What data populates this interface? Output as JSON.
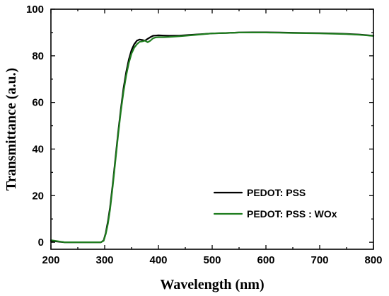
{
  "chart_data": {
    "type": "line",
    "title": "",
    "xlabel": "Wavelength (nm)",
    "ylabel": "Transmittance (a.u.)",
    "xlim": [
      200,
      800
    ],
    "ylim": [
      -3,
      100
    ],
    "x_ticks": [
      200,
      300,
      400,
      500,
      600,
      700,
      800
    ],
    "y_ticks": [
      0,
      20,
      40,
      60,
      80,
      100
    ],
    "grid": false,
    "legend_position": "bottom-right",
    "series": [
      {
        "name": "PEDOT: PSS",
        "color": "#000000",
        "x": [
          200,
          225,
          250,
          275,
          293,
          298,
          302,
          306,
          310,
          315,
          320,
          325,
          330,
          335,
          340,
          345,
          350,
          355,
          360,
          365,
          370,
          375,
          380,
          385,
          390,
          395,
          400,
          410,
          420,
          440,
          460,
          480,
          500,
          525,
          550,
          575,
          600,
          625,
          650,
          675,
          700,
          725,
          750,
          775,
          800
        ],
        "values": [
          0.6,
          0.0,
          0.0,
          0.0,
          0.0,
          0.8,
          4,
          9,
          15,
          25,
          36,
          47,
          57,
          66,
          73,
          78.5,
          82.5,
          85,
          86.5,
          87,
          86.8,
          86.5,
          87.3,
          88,
          88.6,
          88.7,
          88.8,
          88.7,
          88.6,
          88.7,
          89.0,
          89.3,
          89.6,
          89.8,
          90.0,
          90.1,
          90.1,
          90.0,
          89.9,
          89.8,
          89.7,
          89.6,
          89.4,
          89.1,
          88.6
        ]
      },
      {
        "name": "PEDOT: PSS : WOx",
        "color": "#1e7d1e",
        "x": [
          200,
          225,
          250,
          275,
          293,
          298,
          302,
          306,
          310,
          315,
          320,
          325,
          330,
          335,
          340,
          345,
          350,
          355,
          360,
          365,
          370,
          375,
          380,
          385,
          390,
          395,
          400,
          410,
          420,
          440,
          460,
          480,
          500,
          525,
          550,
          575,
          600,
          625,
          650,
          675,
          700,
          725,
          750,
          775,
          800
        ],
        "values": [
          0.9,
          0.0,
          0.0,
          0.0,
          0.0,
          0.6,
          3.5,
          8,
          14,
          24,
          35,
          46,
          56,
          64.5,
          71.5,
          77,
          81,
          83.5,
          85,
          86,
          86.2,
          86.5,
          85.8,
          86.5,
          87.5,
          87.9,
          88.0,
          88.0,
          88.1,
          88.4,
          88.8,
          89.2,
          89.6,
          89.8,
          90.0,
          90.0,
          90.0,
          89.9,
          89.8,
          89.7,
          89.6,
          89.5,
          89.3,
          89.0,
          88.5
        ]
      }
    ]
  }
}
